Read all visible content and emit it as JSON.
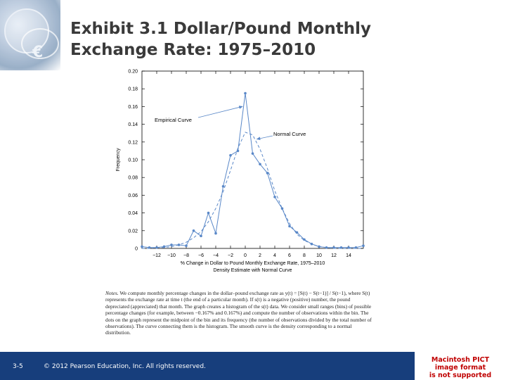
{
  "slide": {
    "title_line1": "Exhibit 3.1  Dollar/Pound Monthly",
    "title_line2": "Exchange Rate: 1975–2010",
    "slide_number": "3-5",
    "copyright": "© 2012 Pearson Education, Inc. All rights reserved.",
    "pict_notice_line1": "Macintosh PICT",
    "pict_notice_line2": "image format",
    "pict_notice_line3": "is not supported",
    "pict_notice_color": "#c00000",
    "footer_color": "#173e7c"
  },
  "notes": {
    "lead": "Notes.",
    "text": "We compute monthly percentage changes in the dollar–pound exchange rate as y(t) = [S(t) − S(t−1)] / S(t−1), where S(t) represents the exchange rate at time t (the end of a particular month). If s(t) is a negative (positive) number, the pound depreciated (appreciated) that month. The graph creates a histogram of the s(t) data. We consider small ranges (bins) of possible percentage changes (for example, between −0.167% and 0.167%) and compute the number of observations within the bin. The dots on the graph represent the midpoint of the bin and its frequency (the number of observations divided by the total number of observations). The curve connecting them is the histogram. The smooth curve is the density corresponding to a normal distribution."
  },
  "chart_data": {
    "type": "line",
    "xlabel": "% Change in Dollar to Pound Monthly Exchange Rate, 1975–2010",
    "caption": "Density Estimate with Normal Curve",
    "ylabel": "Frequency",
    "xlim": [
      -14,
      16
    ],
    "ylim": [
      0,
      0.2
    ],
    "x_ticks": [
      -12,
      -10,
      -8,
      -6,
      -4,
      -2,
      0,
      2,
      4,
      6,
      8,
      10,
      12,
      14
    ],
    "x_tick_labels": [
      "−12",
      "−10",
      "−8",
      "−6",
      "−4",
      "−2",
      "0",
      "2",
      "4",
      "6",
      "8",
      "10",
      "12",
      "14"
    ],
    "y_ticks": [
      0,
      0.02,
      0.04,
      0.06,
      0.08,
      0.1,
      0.12,
      0.14,
      0.16,
      0.18,
      0.2
    ],
    "y_tick_labels": [
      "0",
      "0.02",
      "0.04",
      "0.06",
      "0.08",
      "0.10",
      "0.12",
      "0.14",
      "0.16",
      "0.18",
      "0.20"
    ],
    "grid": false,
    "color": "#5a88c8",
    "annotations": [
      {
        "text": "Empirical Curve",
        "target_x": 0,
        "target_y": 0.168
      },
      {
        "text": "Normal Curve",
        "target_x": 1.0,
        "target_y": 0.128
      }
    ],
    "series": [
      {
        "name": "Empirical Curve",
        "style": "solid-with-markers",
        "x": [
          -14,
          -13,
          -12,
          -11,
          -10,
          -9,
          -8,
          -7,
          -6,
          -5,
          -4,
          -3,
          -2,
          -1,
          0,
          1,
          2,
          3,
          4,
          5,
          6,
          7,
          8,
          9,
          10,
          11,
          12,
          13,
          14,
          15,
          16
        ],
        "y": [
          0.002,
          0.001,
          0.001,
          0.002,
          0.004,
          0.004,
          0.003,
          0.02,
          0.014,
          0.04,
          0.017,
          0.07,
          0.105,
          0.11,
          0.175,
          0.107,
          0.095,
          0.085,
          0.058,
          0.045,
          0.025,
          0.018,
          0.01,
          0.005,
          0.002,
          0.001,
          0.001,
          0.001,
          0.001,
          0.001,
          0.003
        ]
      },
      {
        "name": "Normal Curve",
        "style": "dashed",
        "x": [
          -14,
          -13,
          -12,
          -11,
          -10,
          -9,
          -8,
          -7,
          -6,
          -5,
          -4,
          -3,
          -2,
          -1,
          0,
          1,
          2,
          3,
          4,
          5,
          6,
          7,
          8,
          9,
          10,
          11,
          12,
          13,
          14,
          15,
          16
        ],
        "y": [
          0.0,
          0.0,
          0.001,
          0.001,
          0.002,
          0.004,
          0.007,
          0.012,
          0.019,
          0.03,
          0.045,
          0.064,
          0.088,
          0.113,
          0.131,
          0.128,
          0.112,
          0.09,
          0.065,
          0.045,
          0.028,
          0.016,
          0.009,
          0.005,
          0.002,
          0.001,
          0.0,
          0.0,
          0.0,
          0.0,
          0.0
        ]
      }
    ]
  }
}
